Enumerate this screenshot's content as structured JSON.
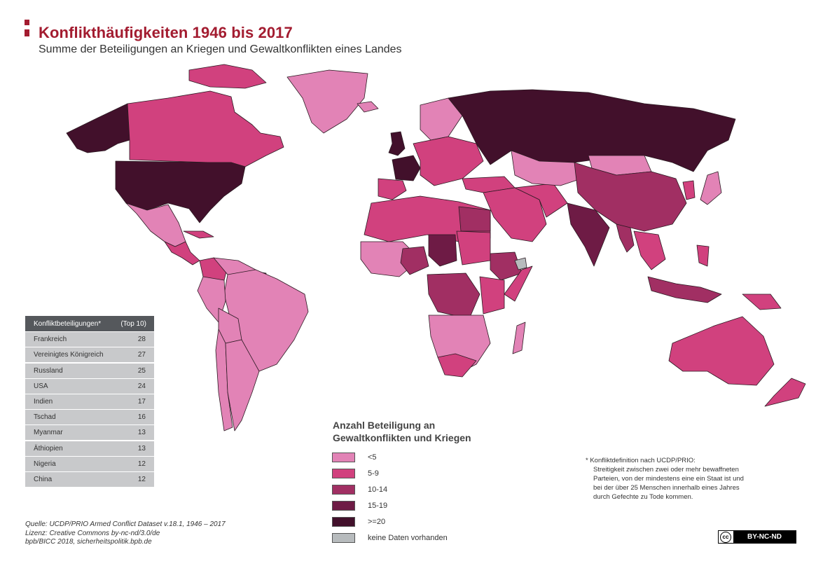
{
  "header": {
    "title": "Konflikthäufigkeiten 1946 bis 2017",
    "subtitle": "Summe der Beteiligungen an Kriegen und Gewaltkonflikten eines Landes"
  },
  "colors": {
    "accent": "#a31c30",
    "lt5": "#e283b6",
    "c5_9": "#d1417e",
    "c10_14": "#a12f63",
    "c15_19": "#6e1b45",
    "ge20": "#42102b",
    "nodata": "#b7bbbd",
    "border": "#2b1a22"
  },
  "table": {
    "header_label": "Konfliktbeteiligungen*",
    "header_note": "(Top 10)",
    "rows": [
      {
        "country": "Frankreich",
        "value": "28"
      },
      {
        "country": "Vereinigtes Königreich",
        "value": "27"
      },
      {
        "country": "Russland",
        "value": "25"
      },
      {
        "country": "USA",
        "value": "24"
      },
      {
        "country": "Indien",
        "value": "17"
      },
      {
        "country": "Tschad",
        "value": "16"
      },
      {
        "country": "Myanmar",
        "value": "13"
      },
      {
        "country": "Äthiopien",
        "value": "13"
      },
      {
        "country": "Nigeria",
        "value": "12"
      },
      {
        "country": "China",
        "value": "12"
      }
    ]
  },
  "legend": {
    "title_line1": "Anzahl Beteiligung an",
    "title_line2": "Gewaltkonflikten und Kriegen",
    "items": [
      {
        "label": "<5",
        "color": "#e283b6"
      },
      {
        "label": "5-9",
        "color": "#d1417e"
      },
      {
        "label": "10-14",
        "color": "#a12f63"
      },
      {
        "label": "15-19",
        "color": "#6e1b45"
      },
      {
        "label": ">=20",
        "color": "#42102b"
      },
      {
        "label": "keine Daten vorhanden",
        "color": "#b7bbbd"
      }
    ]
  },
  "note": {
    "line1": "*  Konfliktdefinition nach UCDP/PRIO:",
    "line2": "Streitigkeit zwischen zwei oder mehr bewaffneten",
    "line3": "Parteien, von der mindestens eine ein Staat ist und",
    "line4": "bei der über 25 Menschen innerhalb eines Jahres",
    "line5": "durch Gefechte zu Tode kommen."
  },
  "source": {
    "line1": "Quelle: UCDP/PRIO Armed Conflict Dataset v.18.1, 1946 – 2017",
    "line2": "Lizenz: Creative Commons by-nc-nd/3.0/de",
    "line3": "bpb/BICC 2018, sicherheitspolitik.bpb.de"
  },
  "license_badge": {
    "cc": "cc",
    "text": "BY-NC-ND"
  }
}
